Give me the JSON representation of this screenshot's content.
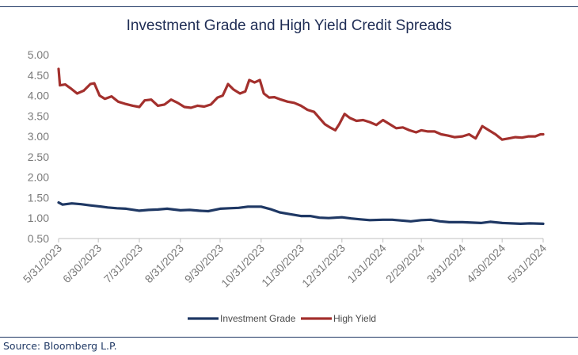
{
  "chart_data": {
    "type": "line",
    "title": "Investment Grade and High Yield Credit Spreads",
    "xlabel": "",
    "ylabel": "",
    "ylim": [
      0.5,
      5.0
    ],
    "yticks": [
      "5.00",
      "4.50",
      "4.00",
      "3.50",
      "3.00",
      "2.50",
      "2.00",
      "1.50",
      "1.00",
      "0.50"
    ],
    "xticks": [
      "5/31/2023",
      "6/30/2023",
      "7/31/2023",
      "8/31/2023",
      "9/30/2023",
      "10/31/2023",
      "11/30/2023",
      "12/31/2023",
      "1/31/2024",
      "2/29/2024",
      "3/31/2024",
      "4/30/2024",
      "5/31/2024"
    ],
    "grid": false,
    "legend_position": "bottom",
    "series": [
      {
        "name": "Investment Grade",
        "color": "#1f3864",
        "points": [
          [
            "5/31/2023",
            1.38
          ],
          [
            "6/3/2023",
            1.33
          ],
          [
            "6/10/2023",
            1.36
          ],
          [
            "6/17/2023",
            1.34
          ],
          [
            "6/24/2023",
            1.31
          ],
          [
            "6/30/2023",
            1.29
          ],
          [
            "7/7/2023",
            1.26
          ],
          [
            "7/14/2023",
            1.24
          ],
          [
            "7/21/2023",
            1.23
          ],
          [
            "7/31/2023",
            1.18
          ],
          [
            "8/7/2023",
            1.2
          ],
          [
            "8/14/2023",
            1.21
          ],
          [
            "8/21/2023",
            1.23
          ],
          [
            "8/31/2023",
            1.19
          ],
          [
            "9/7/2023",
            1.2
          ],
          [
            "9/14/2023",
            1.18
          ],
          [
            "9/21/2023",
            1.17
          ],
          [
            "9/30/2023",
            1.23
          ],
          [
            "10/7/2023",
            1.24
          ],
          [
            "10/14/2023",
            1.25
          ],
          [
            "10/21/2023",
            1.28
          ],
          [
            "10/31/2023",
            1.28
          ],
          [
            "11/7/2023",
            1.22
          ],
          [
            "11/14/2023",
            1.14
          ],
          [
            "11/21/2023",
            1.1
          ],
          [
            "11/30/2023",
            1.05
          ],
          [
            "12/7/2023",
            1.05
          ],
          [
            "12/14/2023",
            1.01
          ],
          [
            "12/21/2023",
            1.0
          ],
          [
            "12/31/2023",
            1.02
          ],
          [
            "1/7/2024",
            0.99
          ],
          [
            "1/14/2024",
            0.97
          ],
          [
            "1/21/2024",
            0.95
          ],
          [
            "1/31/2024",
            0.96
          ],
          [
            "2/7/2024",
            0.96
          ],
          [
            "2/14/2024",
            0.94
          ],
          [
            "2/21/2024",
            0.92
          ],
          [
            "2/29/2024",
            0.95
          ],
          [
            "3/7/2024",
            0.96
          ],
          [
            "3/14/2024",
            0.92
          ],
          [
            "3/21/2024",
            0.9
          ],
          [
            "3/31/2024",
            0.9
          ],
          [
            "4/7/2024",
            0.89
          ],
          [
            "4/14/2024",
            0.88
          ],
          [
            "4/21/2024",
            0.91
          ],
          [
            "4/30/2024",
            0.88
          ],
          [
            "5/7/2024",
            0.87
          ],
          [
            "5/14/2024",
            0.86
          ],
          [
            "5/21/2024",
            0.87
          ],
          [
            "5/31/2024",
            0.86
          ]
        ]
      },
      {
        "name": "High Yield",
        "color": "#a3302d",
        "points": [
          [
            "5/31/2023",
            4.65
          ],
          [
            "6/1/2023",
            4.25
          ],
          [
            "6/5/2023",
            4.27
          ],
          [
            "6/9/2023",
            4.18
          ],
          [
            "6/14/2023",
            4.05
          ],
          [
            "6/19/2023",
            4.12
          ],
          [
            "6/24/2023",
            4.28
          ],
          [
            "6/27/2023",
            4.3
          ],
          [
            "7/1/2023",
            4.0
          ],
          [
            "7/5/2023",
            3.92
          ],
          [
            "7/10/2023",
            3.98
          ],
          [
            "7/15/2023",
            3.85
          ],
          [
            "7/20/2023",
            3.8
          ],
          [
            "7/26/2023",
            3.75
          ],
          [
            "7/31/2023",
            3.72
          ],
          [
            "8/4/2023",
            3.88
          ],
          [
            "8/9/2023",
            3.9
          ],
          [
            "8/14/2023",
            3.75
          ],
          [
            "8/19/2023",
            3.78
          ],
          [
            "8/24/2023",
            3.9
          ],
          [
            "8/29/2023",
            3.82
          ],
          [
            "9/3/2023",
            3.72
          ],
          [
            "9/8/2023",
            3.7
          ],
          [
            "9/13/2023",
            3.75
          ],
          [
            "9/18/2023",
            3.73
          ],
          [
            "9/23/2023",
            3.78
          ],
          [
            "9/28/2023",
            3.95
          ],
          [
            "10/2/2023",
            4.0
          ],
          [
            "10/6/2023",
            4.28
          ],
          [
            "10/10/2023",
            4.15
          ],
          [
            "10/15/2023",
            4.05
          ],
          [
            "10/19/2023",
            4.1
          ],
          [
            "10/22/2023",
            4.38
          ],
          [
            "10/26/2023",
            4.32
          ],
          [
            "10/30/2023",
            4.38
          ],
          [
            "11/2/2023",
            4.05
          ],
          [
            "11/6/2023",
            3.95
          ],
          [
            "11/10/2023",
            3.96
          ],
          [
            "11/15/2023",
            3.9
          ],
          [
            "11/20/2023",
            3.85
          ],
          [
            "11/25/2023",
            3.82
          ],
          [
            "11/30/2023",
            3.75
          ],
          [
            "12/5/2023",
            3.65
          ],
          [
            "12/10/2023",
            3.6
          ],
          [
            "12/14/2023",
            3.45
          ],
          [
            "12/18/2023",
            3.3
          ],
          [
            "12/22/2023",
            3.22
          ],
          [
            "12/26/2023",
            3.15
          ],
          [
            "12/29/2023",
            3.3
          ],
          [
            "1/2/2024",
            3.55
          ],
          [
            "1/6/2024",
            3.45
          ],
          [
            "1/11/2024",
            3.38
          ],
          [
            "1/16/2024",
            3.4
          ],
          [
            "1/21/2024",
            3.35
          ],
          [
            "1/26/2024",
            3.28
          ],
          [
            "1/31/2024",
            3.4
          ],
          [
            "2/5/2024",
            3.3
          ],
          [
            "2/10/2024",
            3.2
          ],
          [
            "2/15/2024",
            3.22
          ],
          [
            "2/20/2024",
            3.15
          ],
          [
            "2/25/2024",
            3.1
          ],
          [
            "2/29/2024",
            3.15
          ],
          [
            "3/5/2024",
            3.12
          ],
          [
            "3/10/2024",
            3.12
          ],
          [
            "3/15/2024",
            3.05
          ],
          [
            "3/20/2024",
            3.02
          ],
          [
            "3/25/2024",
            2.98
          ],
          [
            "3/31/2024",
            3.0
          ],
          [
            "4/5/2024",
            3.05
          ],
          [
            "4/10/2024",
            2.95
          ],
          [
            "4/15/2024",
            3.25
          ],
          [
            "4/20/2024",
            3.15
          ],
          [
            "4/25/2024",
            3.05
          ],
          [
            "4/30/2024",
            2.92
          ],
          [
            "5/5/2024",
            2.95
          ],
          [
            "5/10/2024",
            2.98
          ],
          [
            "5/15/2024",
            2.97
          ],
          [
            "5/20/2024",
            3.0
          ],
          [
            "5/25/2024",
            3.0
          ],
          [
            "5/29/2024",
            3.05
          ],
          [
            "5/31/2024",
            3.05
          ]
        ]
      }
    ]
  },
  "source_note": "Source: Bloomberg L.P."
}
